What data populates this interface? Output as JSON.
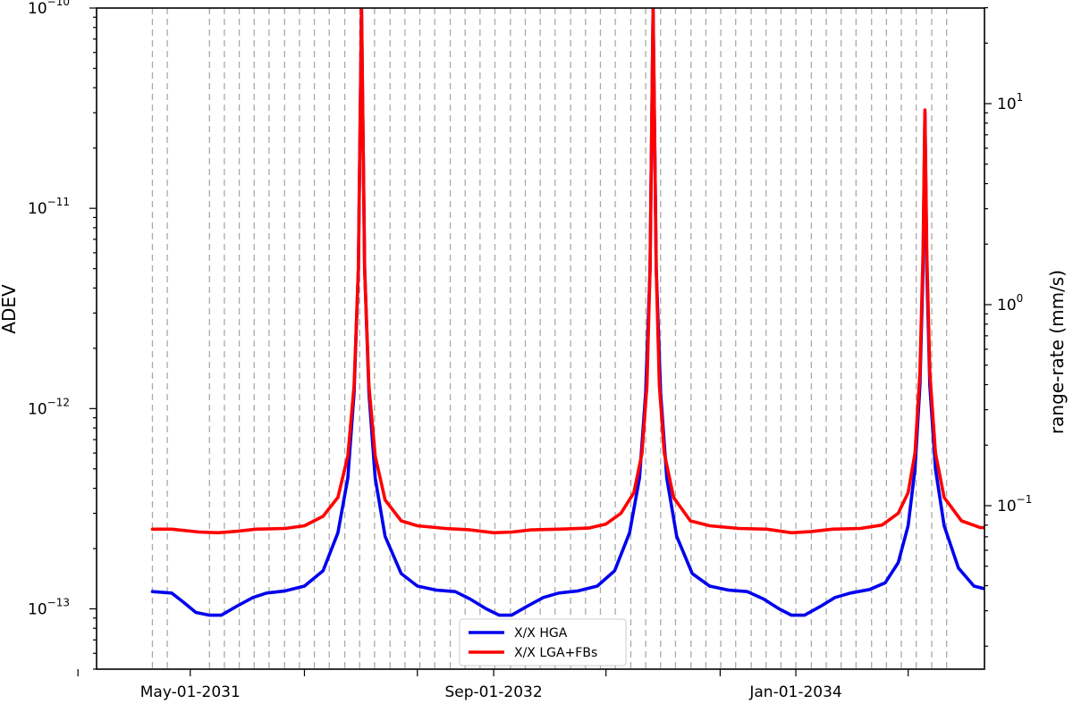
{
  "chart_data": {
    "type": "line",
    "ylabel": "ADEV",
    "y2label": "range-rate (mm/s)",
    "xlabel": "",
    "x_ticks": [
      {
        "date": "2030-11-01",
        "label": ""
      },
      {
        "date": "2031-05-01",
        "label": "May-01-2031"
      },
      {
        "date": "2031-11-01",
        "label": ""
      },
      {
        "date": "2032-05-01",
        "label": ""
      },
      {
        "date": "2032-09-01",
        "label": "Sep-01-2032"
      },
      {
        "date": "2033-03-01",
        "label": ""
      },
      {
        "date": "2033-09-01",
        "label": ""
      },
      {
        "date": "2034-01-01",
        "label": "Jan-01-2034"
      },
      {
        "date": "2034-07-01",
        "label": ""
      }
    ],
    "xlim": [
      "2030-12-01",
      "2034-11-01"
    ],
    "y_scale": "log",
    "ylim": [
      5e-14,
      1e-10
    ],
    "y_ticks": [
      {
        "value": 1e-13,
        "base": "10",
        "exp": "−13"
      },
      {
        "value": 1e-12,
        "base": "10",
        "exp": "−12"
      },
      {
        "value": 1e-11,
        "base": "10",
        "exp": "−11"
      },
      {
        "value": 1e-10,
        "base": "10",
        "exp": "−10"
      }
    ],
    "y2_scale": "log",
    "y2_ticks": [
      {
        "value": 0.1,
        "base": "10",
        "exp": "−1"
      },
      {
        "value": 1,
        "base": "10",
        "exp": "0"
      },
      {
        "value": 10,
        "base": "10",
        "exp": "1"
      }
    ],
    "legend_position": "bottom-center",
    "grid": false,
    "vertical_markers": [
      "2031-03-01",
      "2031-03-25",
      "2031-06-01",
      "2031-06-25",
      "2031-07-19",
      "2031-08-12",
      "2031-09-05",
      "2031-09-30",
      "2031-10-24",
      "2031-11-17",
      "2031-12-11",
      "2032-01-05",
      "2032-01-29",
      "2032-02-22",
      "2032-03-18",
      "2032-04-11",
      "2032-05-05",
      "2032-05-29",
      "2032-06-23",
      "2032-07-17",
      "2032-08-10",
      "2032-09-03",
      "2032-09-28",
      "2032-10-22",
      "2032-11-15",
      "2032-12-09",
      "2033-01-03",
      "2033-01-27",
      "2033-02-20",
      "2033-03-16",
      "2033-04-10",
      "2033-05-04",
      "2033-05-28",
      "2033-06-21",
      "2033-07-16",
      "2033-08-09",
      "2033-09-02",
      "2033-09-26",
      "2033-10-21",
      "2033-11-14",
      "2033-12-08",
      "2034-01-01",
      "2034-01-26",
      "2034-02-19",
      "2034-03-15",
      "2034-04-08",
      "2034-05-03",
      "2034-05-27",
      "2034-06-20",
      "2034-07-14",
      "2034-08-08",
      "2034-09-01"
    ],
    "series": [
      {
        "name": "X/X HGA",
        "color": "#0000ee",
        "points": [
          {
            "x": "2031-03-01",
            "y": 1.22e-13
          },
          {
            "x": "2031-04-01",
            "y": 1.2e-13
          },
          {
            "x": "2031-04-20",
            "y": 1.08e-13
          },
          {
            "x": "2031-05-10",
            "y": 9.6e-14
          },
          {
            "x": "2031-06-01",
            "y": 9.3e-14
          },
          {
            "x": "2031-06-20",
            "y": 9.3e-14
          },
          {
            "x": "2031-07-15",
            "y": 1.03e-13
          },
          {
            "x": "2031-08-10",
            "y": 1.14e-13
          },
          {
            "x": "2031-09-01",
            "y": 1.2e-13
          },
          {
            "x": "2031-10-01",
            "y": 1.23e-13
          },
          {
            "x": "2031-11-01",
            "y": 1.3e-13
          },
          {
            "x": "2031-12-01",
            "y": 1.55e-13
          },
          {
            "x": "2031-12-25",
            "y": 2.4e-13
          },
          {
            "x": "2032-01-10",
            "y": 4.5e-13
          },
          {
            "x": "2032-01-20",
            "y": 1.2e-12
          },
          {
            "x": "2032-01-27",
            "y": 5e-12
          },
          {
            "x": "2032-02-01",
            "y": 1e-10
          },
          {
            "x": "2032-02-06",
            "y": 5e-12
          },
          {
            "x": "2032-02-13",
            "y": 1.2e-12
          },
          {
            "x": "2032-02-23",
            "y": 4.5e-13
          },
          {
            "x": "2032-03-10",
            "y": 2.3e-13
          },
          {
            "x": "2032-04-05",
            "y": 1.5e-13
          },
          {
            "x": "2032-05-01",
            "y": 1.3e-13
          },
          {
            "x": "2032-06-01",
            "y": 1.24e-13
          },
          {
            "x": "2032-07-01",
            "y": 1.22e-13
          },
          {
            "x": "2032-07-25",
            "y": 1.12e-13
          },
          {
            "x": "2032-08-20",
            "y": 1e-13
          },
          {
            "x": "2032-09-10",
            "y": 9.3e-14
          },
          {
            "x": "2032-09-30",
            "y": 9.3e-14
          },
          {
            "x": "2032-10-25",
            "y": 1.03e-13
          },
          {
            "x": "2032-11-20",
            "y": 1.14e-13
          },
          {
            "x": "2032-12-15",
            "y": 1.2e-13
          },
          {
            "x": "2033-01-15",
            "y": 1.23e-13
          },
          {
            "x": "2033-02-15",
            "y": 1.3e-13
          },
          {
            "x": "2033-03-15",
            "y": 1.55e-13
          },
          {
            "x": "2033-04-08",
            "y": 2.4e-13
          },
          {
            "x": "2033-04-24",
            "y": 4.5e-13
          },
          {
            "x": "2033-05-04",
            "y": 1.2e-12
          },
          {
            "x": "2033-05-11",
            "y": 5e-12
          },
          {
            "x": "2033-05-16",
            "y": 1e-10
          },
          {
            "x": "2033-05-21",
            "y": 5e-12
          },
          {
            "x": "2033-05-28",
            "y": 1.2e-12
          },
          {
            "x": "2033-06-07",
            "y": 4.5e-13
          },
          {
            "x": "2033-06-23",
            "y": 2.3e-13
          },
          {
            "x": "2033-07-18",
            "y": 1.5e-13
          },
          {
            "x": "2033-08-15",
            "y": 1.3e-13
          },
          {
            "x": "2033-09-15",
            "y": 1.24e-13
          },
          {
            "x": "2033-10-15",
            "y": 1.22e-13
          },
          {
            "x": "2033-11-10",
            "y": 1.12e-13
          },
          {
            "x": "2033-12-05",
            "y": 1e-13
          },
          {
            "x": "2033-12-25",
            "y": 9.3e-14
          },
          {
            "x": "2034-01-15",
            "y": 9.3e-14
          },
          {
            "x": "2034-02-10",
            "y": 1.03e-13
          },
          {
            "x": "2034-03-05",
            "y": 1.14e-13
          },
          {
            "x": "2034-03-30",
            "y": 1.2e-13
          },
          {
            "x": "2034-04-30",
            "y": 1.25e-13
          },
          {
            "x": "2034-05-25",
            "y": 1.35e-13
          },
          {
            "x": "2034-06-15",
            "y": 1.7e-13
          },
          {
            "x": "2034-07-01",
            "y": 2.6e-13
          },
          {
            "x": "2034-07-12",
            "y": 5e-13
          },
          {
            "x": "2034-07-20",
            "y": 1.3e-12
          },
          {
            "x": "2034-07-25",
            "y": 5e-12
          },
          {
            "x": "2034-07-28",
            "y": 3e-11
          },
          {
            "x": "2034-07-31",
            "y": 5e-12
          },
          {
            "x": "2034-08-05",
            "y": 1.3e-12
          },
          {
            "x": "2034-08-14",
            "y": 5e-13
          },
          {
            "x": "2034-08-28",
            "y": 2.6e-13
          },
          {
            "x": "2034-09-20",
            "y": 1.6e-13
          },
          {
            "x": "2034-10-15",
            "y": 1.3e-13
          },
          {
            "x": "2034-11-15",
            "y": 1.23e-13
          },
          {
            "x": "2034-12-01",
            "y": 1.22e-13
          }
        ]
      },
      {
        "name": "X/X LGA+FBs",
        "color": "#ff0000",
        "points": [
          {
            "x": "2031-03-01",
            "y": 2.5e-13
          },
          {
            "x": "2031-04-01",
            "y": 2.5e-13
          },
          {
            "x": "2031-05-15",
            "y": 2.42e-13
          },
          {
            "x": "2031-06-15",
            "y": 2.4e-13
          },
          {
            "x": "2031-07-15",
            "y": 2.44e-13
          },
          {
            "x": "2031-08-15",
            "y": 2.5e-13
          },
          {
            "x": "2031-10-01",
            "y": 2.52e-13
          },
          {
            "x": "2031-11-01",
            "y": 2.6e-13
          },
          {
            "x": "2031-12-01",
            "y": 2.9e-13
          },
          {
            "x": "2031-12-25",
            "y": 3.6e-13
          },
          {
            "x": "2032-01-10",
            "y": 5.8e-13
          },
          {
            "x": "2032-01-20",
            "y": 1.3e-12
          },
          {
            "x": "2032-01-27",
            "y": 5e-12
          },
          {
            "x": "2032-02-01",
            "y": 1e-10
          },
          {
            "x": "2032-02-06",
            "y": 5e-12
          },
          {
            "x": "2032-02-13",
            "y": 1.3e-12
          },
          {
            "x": "2032-02-23",
            "y": 5.8e-13
          },
          {
            "x": "2032-03-10",
            "y": 3.5e-13
          },
          {
            "x": "2032-04-05",
            "y": 2.75e-13
          },
          {
            "x": "2032-05-01",
            "y": 2.6e-13
          },
          {
            "x": "2032-06-15",
            "y": 2.52e-13
          },
          {
            "x": "2032-07-25",
            "y": 2.48e-13
          },
          {
            "x": "2032-09-01",
            "y": 2.4e-13
          },
          {
            "x": "2032-10-01",
            "y": 2.42e-13
          },
          {
            "x": "2032-11-01",
            "y": 2.48e-13
          },
          {
            "x": "2032-12-15",
            "y": 2.5e-13
          },
          {
            "x": "2033-02-01",
            "y": 2.53e-13
          },
          {
            "x": "2033-03-01",
            "y": 2.65e-13
          },
          {
            "x": "2033-03-25",
            "y": 3e-13
          },
          {
            "x": "2033-04-15",
            "y": 3.8e-13
          },
          {
            "x": "2033-04-28",
            "y": 6e-13
          },
          {
            "x": "2033-05-06",
            "y": 1.3e-12
          },
          {
            "x": "2033-05-11",
            "y": 5e-12
          },
          {
            "x": "2033-05-16",
            "y": 1e-10
          },
          {
            "x": "2033-05-21",
            "y": 5e-12
          },
          {
            "x": "2033-05-26",
            "y": 1.3e-12
          },
          {
            "x": "2033-06-03",
            "y": 6e-13
          },
          {
            "x": "2033-06-18",
            "y": 3.6e-13
          },
          {
            "x": "2033-07-15",
            "y": 2.75e-13
          },
          {
            "x": "2033-08-15",
            "y": 2.6e-13
          },
          {
            "x": "2033-10-01",
            "y": 2.52e-13
          },
          {
            "x": "2033-11-15",
            "y": 2.5e-13
          },
          {
            "x": "2033-12-25",
            "y": 2.4e-13
          },
          {
            "x": "2034-01-25",
            "y": 2.43e-13
          },
          {
            "x": "2034-03-01",
            "y": 2.5e-13
          },
          {
            "x": "2034-04-15",
            "y": 2.52e-13
          },
          {
            "x": "2034-05-20",
            "y": 2.62e-13
          },
          {
            "x": "2034-06-15",
            "y": 3e-13
          },
          {
            "x": "2034-07-01",
            "y": 3.8e-13
          },
          {
            "x": "2034-07-12",
            "y": 6e-13
          },
          {
            "x": "2034-07-20",
            "y": 1.5e-12
          },
          {
            "x": "2034-07-25",
            "y": 6e-12
          },
          {
            "x": "2034-07-28",
            "y": 3.1e-11
          },
          {
            "x": "2034-07-31",
            "y": 6e-12
          },
          {
            "x": "2034-08-05",
            "y": 1.5e-12
          },
          {
            "x": "2034-08-14",
            "y": 6e-13
          },
          {
            "x": "2034-08-28",
            "y": 3.6e-13
          },
          {
            "x": "2034-09-25",
            "y": 2.75e-13
          },
          {
            "x": "2034-10-25",
            "y": 2.55e-13
          },
          {
            "x": "2034-12-01",
            "y": 2.52e-13
          }
        ]
      }
    ]
  }
}
